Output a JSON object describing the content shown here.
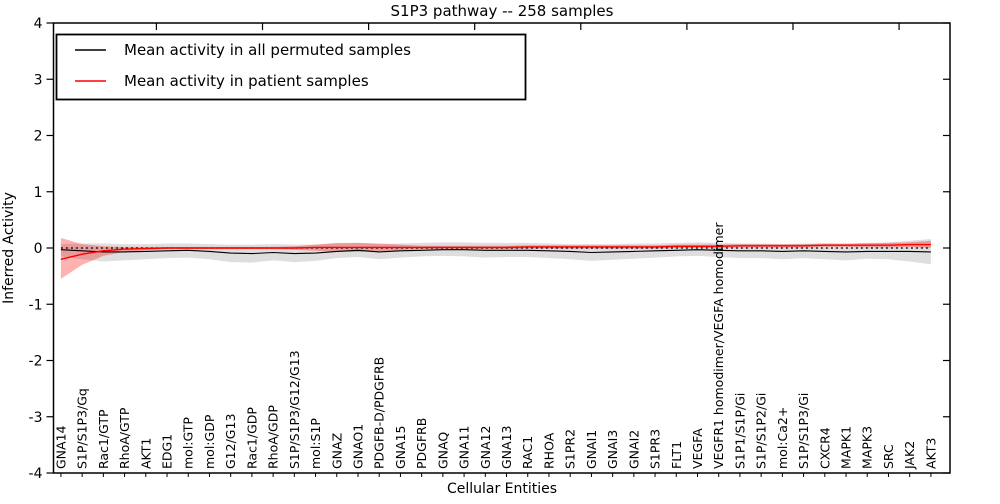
{
  "figure": {
    "title": "S1P3 pathway -- 258 samples",
    "xlabel": "Cellular Entities",
    "ylabel": "Inferred Activity",
    "legend": [
      {
        "label": "Mean activity in all permuted samples",
        "color": "#000000"
      },
      {
        "label": "Mean activity in patient samples",
        "color": "#ff0000"
      }
    ],
    "colors": {
      "permuted_line": "#000000",
      "patient_line": "#ff0000",
      "permuted_band": "#bbbbbb",
      "patient_band": "#ff0000",
      "frame": "#000000",
      "background": "#ffffff"
    }
  },
  "chart_data": {
    "type": "line",
    "title": "S1P3 pathway -- 258 samples",
    "xlabel": "Cellular Entities",
    "ylabel": "Inferred Activity",
    "ylim": [
      -4,
      4
    ],
    "yticks": [
      -4,
      -3,
      -2,
      -1,
      0,
      1,
      2,
      3,
      4
    ],
    "grid": false,
    "legend_position": "upper left",
    "zero_line": {
      "y": 0,
      "style": "dashed",
      "color": "#000000"
    },
    "categories": [
      "GNA14",
      "S1P/S1P3/Gq",
      "Rac1/GTP",
      "RhoA/GTP",
      "AKT1",
      "EDG1",
      "mol:GTP",
      "mol:GDP",
      "G12/G13",
      "Rac1/GDP",
      "RhoA/GDP",
      "S1P/S1P3/G12/G13",
      "mol:S1P",
      "GNAZ",
      "GNAO1",
      "PDGFB-D/PDGFRB",
      "GNA15",
      "PDGFRB",
      "GNAQ",
      "GNA11",
      "GNA12",
      "GNA13",
      "RAC1",
      "RHOA",
      "S1PR2",
      "GNAI1",
      "GNAI3",
      "GNAI2",
      "S1PR3",
      "FLT1",
      "VEGFA",
      "VEGFR1 homodimer/VEGFA homodimer",
      "S1P1/S1P/Gi",
      "S1P/S1P2/Gi",
      "mol:Ca2+",
      "S1P/S1P3/Gi",
      "CXCR4",
      "MAPK1",
      "MAPK3",
      "SRC",
      "JAK2",
      "AKT3"
    ],
    "series": [
      {
        "name": "Mean activity in all permuted samples",
        "color": "#000000",
        "values": [
          -0.03,
          -0.05,
          -0.07,
          -0.07,
          -0.06,
          -0.05,
          -0.04,
          -0.06,
          -0.09,
          -0.1,
          -0.08,
          -0.1,
          -0.09,
          -0.06,
          -0.04,
          -0.07,
          -0.05,
          -0.04,
          -0.03,
          -0.03,
          -0.04,
          -0.04,
          -0.04,
          -0.05,
          -0.06,
          -0.08,
          -0.07,
          -0.06,
          -0.05,
          -0.04,
          -0.03,
          -0.04,
          -0.05,
          -0.05,
          -0.06,
          -0.05,
          -0.06,
          -0.07,
          -0.06,
          -0.06,
          -0.06,
          -0.07
        ]
      },
      {
        "name": "Mean activity in patient samples",
        "color": "#ff0000",
        "values": [
          -0.2,
          -0.11,
          -0.05,
          -0.02,
          -0.01,
          0.0,
          0.0,
          0.0,
          0.0,
          0.0,
          0.0,
          0.0,
          0.01,
          0.01,
          0.01,
          0.01,
          0.01,
          0.01,
          0.01,
          0.01,
          0.01,
          0.01,
          0.02,
          0.02,
          0.02,
          0.02,
          0.02,
          0.02,
          0.02,
          0.03,
          0.03,
          0.03,
          0.04,
          0.04,
          0.04,
          0.04,
          0.05,
          0.05,
          0.05,
          0.05,
          0.06,
          0.06
        ]
      }
    ],
    "bands": [
      {
        "name": "permuted-samples-range",
        "color": "#000000",
        "opacity": 0.13,
        "upper": [
          0.07,
          0.08,
          0.08,
          0.07,
          0.07,
          0.08,
          0.08,
          0.07,
          0.06,
          0.06,
          0.07,
          0.06,
          0.06,
          0.08,
          0.09,
          0.07,
          0.08,
          0.09,
          0.1,
          0.1,
          0.09,
          0.09,
          0.09,
          0.08,
          0.07,
          0.07,
          0.07,
          0.08,
          0.08,
          0.09,
          0.1,
          0.09,
          0.08,
          0.08,
          0.07,
          0.08,
          0.08,
          0.07,
          0.08,
          0.1,
          0.13,
          0.16
        ],
        "lower": [
          -0.15,
          -0.2,
          -0.24,
          -0.22,
          -0.2,
          -0.18,
          -0.17,
          -0.2,
          -0.25,
          -0.26,
          -0.22,
          -0.25,
          -0.23,
          -0.18,
          -0.16,
          -0.2,
          -0.17,
          -0.15,
          -0.14,
          -0.15,
          -0.17,
          -0.16,
          -0.16,
          -0.18,
          -0.2,
          -0.23,
          -0.21,
          -0.19,
          -0.17,
          -0.15,
          -0.14,
          -0.16,
          -0.18,
          -0.18,
          -0.2,
          -0.18,
          -0.2,
          -0.22,
          -0.19,
          -0.2,
          -0.24,
          -0.29
        ]
      },
      {
        "name": "patient-samples-range",
        "color": "#ff0000",
        "opacity": 0.3,
        "upper": [
          0.18,
          0.07,
          0.03,
          0.02,
          0.02,
          0.02,
          0.02,
          0.02,
          0.02,
          0.02,
          0.02,
          0.03,
          0.06,
          0.09,
          0.09,
          0.08,
          0.06,
          0.04,
          0.04,
          0.04,
          0.04,
          0.04,
          0.05,
          0.05,
          0.05,
          0.05,
          0.05,
          0.05,
          0.05,
          0.06,
          0.06,
          0.06,
          0.07,
          0.07,
          0.07,
          0.07,
          0.08,
          0.08,
          0.09,
          0.09,
          0.1,
          0.13
        ],
        "lower": [
          -0.55,
          -0.3,
          -0.14,
          -0.07,
          -0.04,
          -0.02,
          -0.02,
          -0.02,
          -0.02,
          -0.02,
          -0.02,
          -0.03,
          -0.05,
          -0.07,
          -0.07,
          -0.06,
          -0.04,
          -0.02,
          -0.02,
          -0.02,
          -0.02,
          -0.02,
          -0.01,
          -0.01,
          -0.01,
          -0.01,
          -0.01,
          -0.01,
          -0.01,
          0.0,
          0.0,
          0.0,
          0.01,
          0.01,
          0.01,
          0.01,
          0.02,
          0.02,
          0.01,
          0.01,
          0.02,
          0.0
        ]
      }
    ]
  }
}
